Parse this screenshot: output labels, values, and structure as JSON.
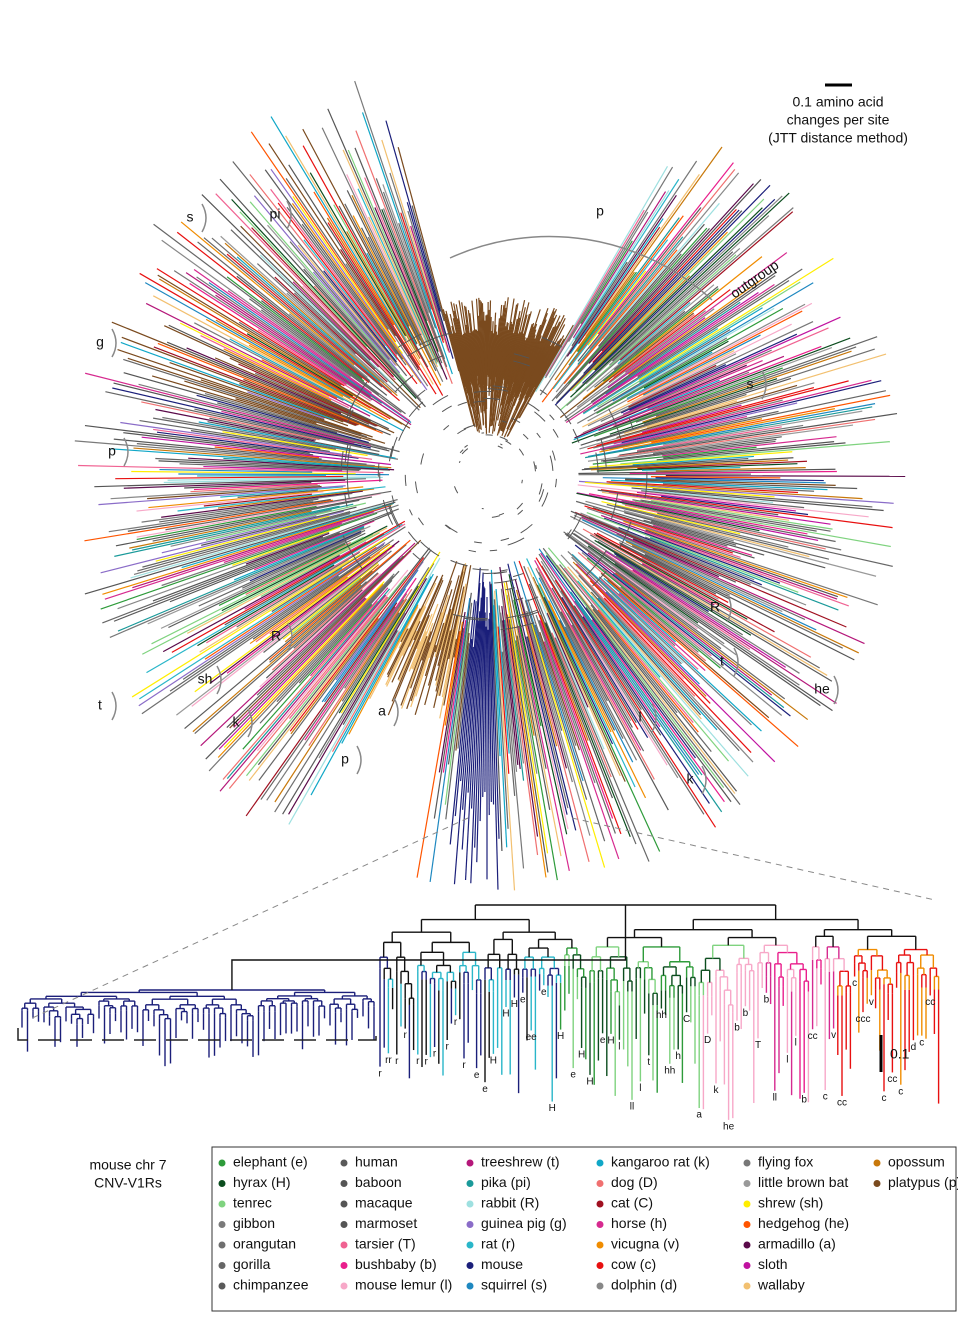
{
  "scale_bar": {
    "lines": [
      "0.1 amino acid",
      "changes per site",
      "(JTT distance method)"
    ]
  },
  "clade_labels": [
    "s",
    "pi",
    "p",
    "outgroup",
    "g",
    "p",
    "s",
    "R",
    "t",
    "he",
    "k",
    "sh",
    "R",
    "t",
    "a",
    "p",
    "l",
    "k"
  ],
  "inset": {
    "title_lines": [
      "mouse chr 7",
      "CNV-V1Rs"
    ],
    "scale_label": "0.1",
    "tip_labels": [
      "r",
      "rr",
      "r",
      "r",
      "r",
      "r",
      "r",
      "r",
      "r",
      "r",
      "e",
      "e",
      "H",
      "H",
      "H",
      "e",
      "ee",
      "e",
      "H",
      "H",
      "e",
      "H",
      "H",
      "e",
      "H",
      "l",
      "ll",
      "l",
      "t",
      "hh",
      "hh",
      "h",
      "C",
      "a",
      "D",
      "k",
      "he",
      "b",
      "b",
      "T",
      "b",
      "ll",
      "l",
      "l",
      "b",
      "cc",
      "c",
      "v",
      "cc",
      "c",
      "ccc",
      "v",
      "c",
      "cc",
      "c",
      "d",
      "c",
      "cc"
    ]
  },
  "legend": [
    {
      "name": "elephant (e)",
      "color": "#2e9b3a"
    },
    {
      "name": "hyrax (H)",
      "color": "#0b4d1e"
    },
    {
      "name": "tenrec",
      "color": "#7fd37f"
    },
    {
      "name": "gibbon",
      "color": "#7a7a7a"
    },
    {
      "name": "orangutan",
      "color": "#6f6f6f"
    },
    {
      "name": "gorilla",
      "color": "#666666"
    },
    {
      "name": "chimpanzee",
      "color": "#5a5a5a"
    },
    {
      "name": "human",
      "color": "#595959"
    },
    {
      "name": "baboon",
      "color": "#555555"
    },
    {
      "name": "macaque",
      "color": "#555555"
    },
    {
      "name": "marmoset",
      "color": "#555555"
    },
    {
      "name": "tarsier (T)",
      "color": "#f06292"
    },
    {
      "name": "bushbaby (b)",
      "color": "#e91e8c"
    },
    {
      "name": "mouse lemur (l)",
      "color": "#f7a8c8"
    },
    {
      "name": "treeshrew (t)",
      "color": "#b5177a"
    },
    {
      "name": "pika (pi)",
      "color": "#1a9a9a"
    },
    {
      "name": "rabbit (R)",
      "color": "#9ee0e0"
    },
    {
      "name": "guinea pig (g)",
      "color": "#8a6cc8"
    },
    {
      "name": "rat (r)",
      "color": "#29b6c9"
    },
    {
      "name": "mouse",
      "color": "#1b1f7a"
    },
    {
      "name": "squirrel (s)",
      "color": "#1e88c0"
    },
    {
      "name": "kangaroo rat (k)",
      "color": "#10a7c7"
    },
    {
      "name": "dog (D)",
      "color": "#f07070"
    },
    {
      "name": "cat (C)",
      "color": "#a01020"
    },
    {
      "name": "horse (h)",
      "color": "#d62a8f"
    },
    {
      "name": "vicugna (v)",
      "color": "#f08c00"
    },
    {
      "name": "cow (c)",
      "color": "#e81010"
    },
    {
      "name": "dolphin (d)",
      "color": "#888888"
    },
    {
      "name": "flying fox",
      "color": "#777777"
    },
    {
      "name": "little brown bat",
      "color": "#999999"
    },
    {
      "name": "shrew (sh)",
      "color": "#ffee00"
    },
    {
      "name": "hedgehog (he)",
      "color": "#ff5500"
    },
    {
      "name": "armadillo (a)",
      "color": "#5a0a4a"
    },
    {
      "name": "sloth",
      "color": "#c012a0"
    },
    {
      "name": "wallaby",
      "color": "#f2c070"
    },
    {
      "name": "opossum",
      "color": "#c8780a"
    },
    {
      "name": "platypus (p)",
      "color": "#7a4a1e"
    }
  ]
}
